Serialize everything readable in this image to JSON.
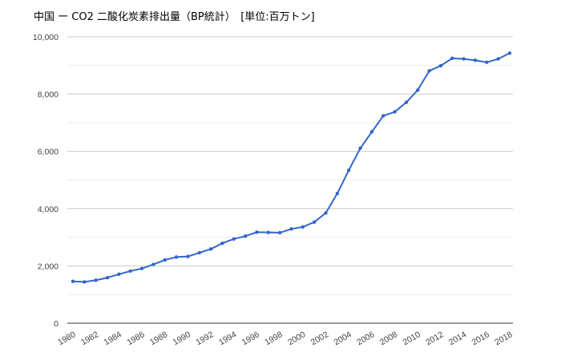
{
  "chart_data": {
    "type": "line",
    "title": "中国 ー CO2 二酸化炭素排出量（BP統計）　[単位:百万トン]",
    "xlabel": "",
    "ylabel": "",
    "ylim": [
      0,
      10000
    ],
    "y_ticks": [
      "0",
      "2,000",
      "4,000",
      "6,000",
      "8,000",
      "10,000"
    ],
    "y_tick_values": [
      0,
      2000,
      4000,
      6000,
      8000,
      10000
    ],
    "x_ticks": [
      "1980",
      "1982",
      "1984",
      "1986",
      "1988",
      "1990",
      "1992",
      "1994",
      "1996",
      "1998",
      "2000",
      "2002",
      "2004",
      "2006",
      "2008",
      "2010",
      "2012",
      "2014",
      "2016",
      "2018"
    ],
    "grid": true,
    "legend": "none",
    "series": [
      {
        "color": "#3366cc",
        "x": [
          1980,
          1981,
          1982,
          1983,
          1984,
          1985,
          1986,
          1987,
          1988,
          1989,
          1990,
          1991,
          1992,
          1993,
          1994,
          1995,
          1996,
          1997,
          1998,
          1999,
          2000,
          2001,
          2002,
          2003,
          2004,
          2005,
          2006,
          2007,
          2008,
          2009,
          2010,
          2011,
          2012,
          2013,
          2014,
          2015,
          2016,
          2017,
          2018
        ],
        "values": [
          1460,
          1440,
          1500,
          1590,
          1710,
          1820,
          1910,
          2050,
          2210,
          2310,
          2330,
          2460,
          2590,
          2790,
          2940,
          3040,
          3180,
          3170,
          3160,
          3290,
          3360,
          3530,
          3850,
          4530,
          5340,
          6110,
          6680,
          7240,
          7380,
          7710,
          8140,
          8810,
          8990,
          9250,
          9230,
          9180,
          9110,
          9230,
          9430
        ]
      }
    ]
  }
}
